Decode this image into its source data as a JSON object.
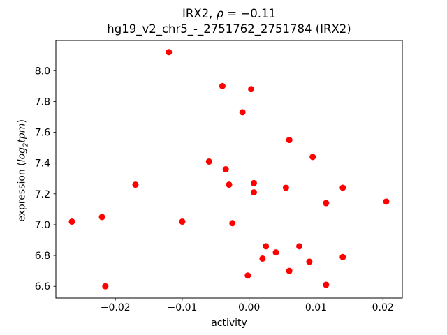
{
  "title": {
    "line1_prefix": "IRX2, ",
    "line1_rho": "ρ",
    "line1_suffix": " = −0.11",
    "line2": "hg19_v2_chr5_-_2751762_2751784 (IRX2)"
  },
  "xlabel": "activity",
  "ylabel": {
    "prefix": "expression (",
    "word1": "log",
    "sub": "2",
    "word2": "tpm",
    "suffix": ")"
  },
  "chart_data": {
    "type": "scatter",
    "title": "IRX2, ρ = −0.11",
    "subtitle": "hg19_v2_chr5_-_2751762_2751784 (IRX2)",
    "xlabel": "activity",
    "ylabel": "expression (log2 tpm)",
    "marker_color": "#ff0000",
    "marker_radius": 4.5,
    "grid": false,
    "legend": "none",
    "xlim": [
      -0.0289,
      0.0229
    ],
    "ylim": [
      6.524,
      8.196
    ],
    "xticks": {
      "values": [
        -0.02,
        -0.01,
        0.0,
        0.01,
        0.02
      ],
      "labels": [
        "−0.02",
        "−0.01",
        "0.00",
        "0.01",
        "0.02"
      ]
    },
    "yticks": {
      "values": [
        6.6,
        6.8,
        7.0,
        7.2,
        7.4,
        7.6,
        7.8,
        8.0
      ],
      "labels": [
        "6.6",
        "6.8",
        "7.0",
        "7.2",
        "7.4",
        "7.6",
        "7.8",
        "8.0"
      ]
    },
    "points": [
      [
        -0.0265,
        7.02
      ],
      [
        -0.022,
        7.05
      ],
      [
        -0.0215,
        6.6
      ],
      [
        -0.017,
        7.26
      ],
      [
        -0.012,
        8.12
      ],
      [
        -0.01,
        7.02
      ],
      [
        -0.006,
        7.41
      ],
      [
        -0.004,
        7.9
      ],
      [
        -0.0035,
        7.36
      ],
      [
        -0.003,
        7.26
      ],
      [
        -0.0025,
        7.01
      ],
      [
        -0.001,
        7.73
      ],
      [
        0.0003,
        7.88
      ],
      [
        0.0007,
        7.27
      ],
      [
        0.0007,
        7.21
      ],
      [
        -0.0002,
        6.67
      ],
      [
        0.002,
        6.78
      ],
      [
        0.0025,
        6.86
      ],
      [
        0.004,
        6.82
      ],
      [
        0.0055,
        7.24
      ],
      [
        0.006,
        7.55
      ],
      [
        0.006,
        6.7
      ],
      [
        0.0075,
        6.86
      ],
      [
        0.009,
        6.76
      ],
      [
        0.0095,
        7.44
      ],
      [
        0.0115,
        7.14
      ],
      [
        0.0115,
        6.61
      ],
      [
        0.014,
        7.24
      ],
      [
        0.014,
        6.79
      ],
      [
        0.0205,
        7.15
      ]
    ]
  }
}
